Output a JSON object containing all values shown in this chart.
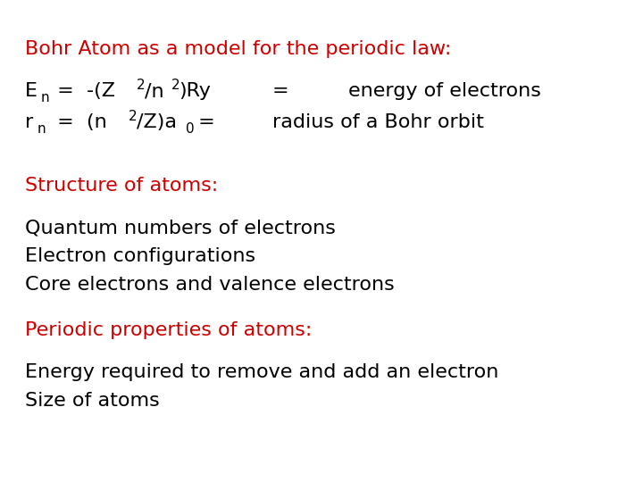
{
  "background_color": "#ffffff",
  "title_text": "Bohr Atom as a model for the periodic law:",
  "title_color": "#cc0000",
  "title_fontsize": 16,
  "structure_header": "Structure of atoms:",
  "structure_header_color": "#cc0000",
  "structure_header_fontsize": 16,
  "structure_items": [
    "Quantum numbers of electrons",
    "Electron configurations",
    "Core electrons and valence electrons"
  ],
  "structure_items_fontsize": 16,
  "structure_items_color": "#000000",
  "periodic_header": "Periodic properties of atoms:",
  "periodic_header_color": "#cc0000",
  "periodic_header_fontsize": 16,
  "periodic_items": [
    "Energy required to remove and add an electron",
    "Size of atoms"
  ],
  "periodic_items_fontsize": 16,
  "periodic_items_color": "#000000",
  "font_family": "Comic Sans MS",
  "eq_fontsize": 16,
  "eq_sub_fontsize": 11,
  "eq_sup_fontsize": 11
}
